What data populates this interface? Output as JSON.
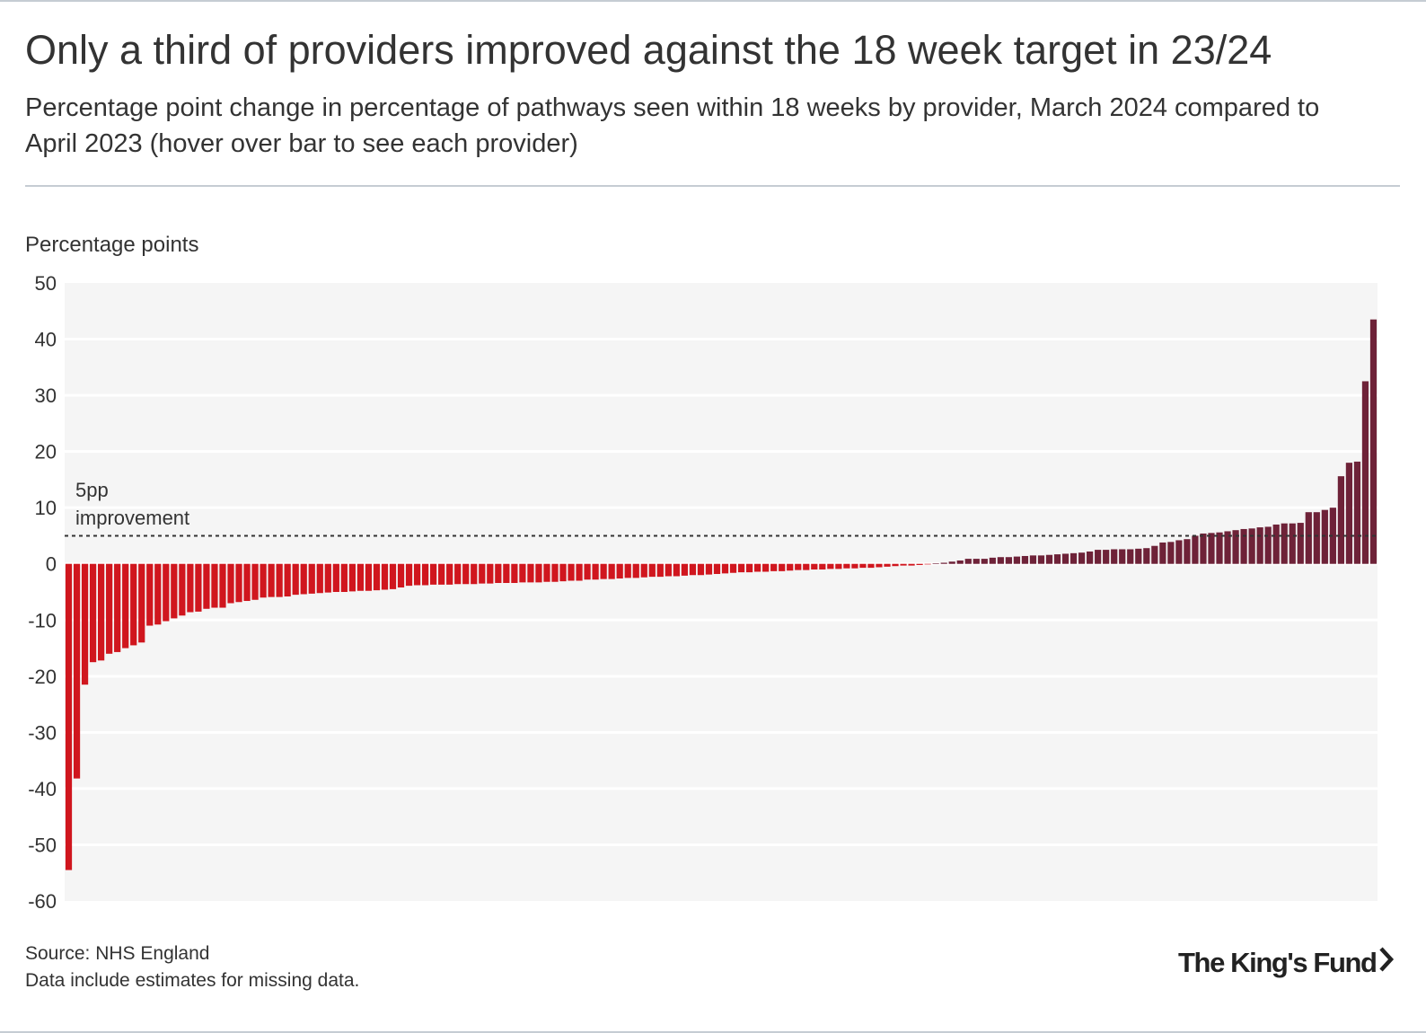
{
  "header": {
    "title": "Only a third of providers improved against the 18 week target in 23/24",
    "subtitle": "Percentage point change in percentage of pathways seen within 18 weeks by provider, March 2024 compared to April 2023 (hover over bar to see each provider)"
  },
  "footer": {
    "source": "Source: NHS England",
    "note": "Data include estimates for missing data.",
    "logo_text": "The King's Fund"
  },
  "colors": {
    "negative_bar": "#d0161e",
    "positive_bar": "#6e2238",
    "plot_background": "#f5f5f5",
    "gridline": "#ffffff",
    "reference_line": "#333333"
  },
  "chart_data": {
    "type": "bar",
    "title": "Only a third of providers improved against the 18 week target in 23/24",
    "ylabel": "Percentage points",
    "xlabel": "",
    "ylim": [
      -60,
      50
    ],
    "yticks": [
      50,
      40,
      30,
      20,
      10,
      0,
      -10,
      -20,
      -30,
      -40,
      -50,
      -60
    ],
    "grid": true,
    "reference_line": {
      "value": 5,
      "label_line1": "5pp",
      "label_line2": "improvement",
      "style": "dotted"
    },
    "values": [
      -54.5,
      -38.2,
      -21.5,
      -17.5,
      -17.2,
      -16,
      -15.7,
      -15,
      -14.5,
      -14,
      -11,
      -10.8,
      -10.2,
      -9.7,
      -9.2,
      -8.6,
      -8.5,
      -8,
      -7.8,
      -7.8,
      -7,
      -6.8,
      -6.6,
      -6.4,
      -6,
      -5.9,
      -5.9,
      -5.8,
      -5.5,
      -5.4,
      -5.3,
      -5.2,
      -5.1,
      -5,
      -5,
      -4.9,
      -4.8,
      -4.8,
      -4.7,
      -4.6,
      -4.5,
      -4.2,
      -3.9,
      -3.8,
      -3.8,
      -3.7,
      -3.7,
      -3.7,
      -3.6,
      -3.6,
      -3.6,
      -3.5,
      -3.5,
      -3.4,
      -3.4,
      -3.4,
      -3.3,
      -3.3,
      -3.3,
      -3.2,
      -3.2,
      -3.1,
      -3,
      -3,
      -2.8,
      -2.8,
      -2.7,
      -2.7,
      -2.6,
      -2.5,
      -2.5,
      -2.4,
      -2.3,
      -2.3,
      -2.2,
      -2.2,
      -2.1,
      -2,
      -2,
      -1.9,
      -1.8,
      -1.7,
      -1.6,
      -1.5,
      -1.5,
      -1.4,
      -1.4,
      -1.3,
      -1.3,
      -1.2,
      -1.1,
      -1.1,
      -1,
      -1,
      -0.9,
      -0.9,
      -0.8,
      -0.8,
      -0.7,
      -0.7,
      -0.6,
      -0.5,
      -0.4,
      -0.3,
      -0.3,
      -0.2,
      -0.1,
      0.1,
      0.2,
      0.4,
      0.6,
      0.9,
      0.9,
      0.9,
      1.1,
      1.2,
      1.2,
      1.3,
      1.4,
      1.5,
      1.5,
      1.6,
      1.7,
      1.8,
      1.9,
      2,
      2.2,
      2.5,
      2.5,
      2.6,
      2.6,
      2.6,
      2.7,
      2.8,
      3.2,
      3.8,
      3.9,
      4.2,
      4.4,
      5,
      5.4,
      5.5,
      5.6,
      5.8,
      6,
      6.2,
      6.3,
      6.5,
      6.6,
      7,
      7.2,
      7.2,
      7.3,
      9.2,
      9.2,
      9.6,
      10,
      15.6,
      18,
      18.2,
      32.5,
      43.5
    ]
  }
}
